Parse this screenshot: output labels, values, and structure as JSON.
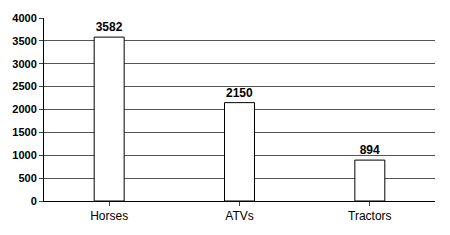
{
  "chart_data": {
    "type": "bar",
    "categories": [
      "Horses",
      "ATVs",
      "Tractors"
    ],
    "values": [
      3582,
      2150,
      894
    ],
    "color": "#ffffff",
    "ylim": [
      0,
      4000
    ],
    "yticks": [
      0,
      500,
      1000,
      1500,
      2000,
      2500,
      3000,
      3500,
      4000
    ],
    "grid": true,
    "data_labels": true
  }
}
